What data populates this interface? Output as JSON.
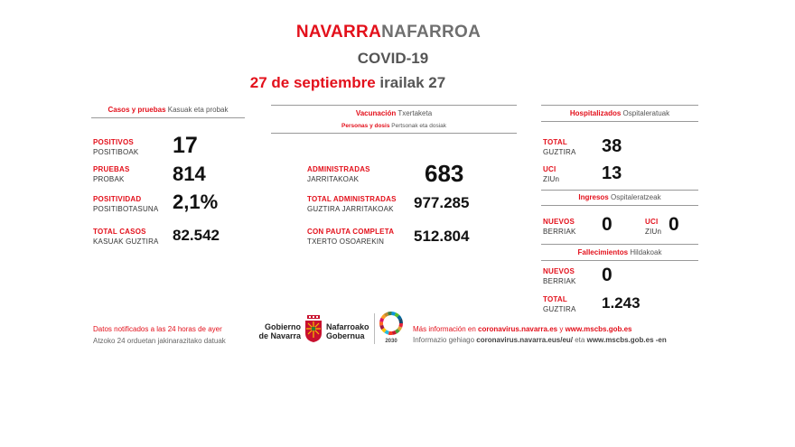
{
  "header": {
    "title_es": "NAVARRA",
    "title_eu": "NAFARROA",
    "subtitle": "COVID-19",
    "date_es": "27 de septiembre",
    "date_eu": "irailak 27"
  },
  "casos": {
    "heading_es": "Casos y pruebas",
    "heading_eu": "Kasuak eta probak",
    "items": [
      {
        "label_es": "POSITIVOS",
        "label_eu": "POSITIBOAK",
        "value": "17"
      },
      {
        "label_es": "PRUEBAS",
        "label_eu": "PROBAK",
        "value": "814"
      },
      {
        "label_es": "POSITIVIDAD",
        "label_eu": "POSITIBOTASUNA",
        "value": "2,1%"
      },
      {
        "label_es": "TOTAL CASOS",
        "label_eu": "KASUAK GUZTIRA",
        "value": "82.542"
      }
    ]
  },
  "vacunacion": {
    "heading_es": "Vacunación",
    "heading_eu": "Txertaketa",
    "subheading_es": "Personas y dosis",
    "subheading_eu": "Pertsonak eta dosiak",
    "items": [
      {
        "label_es": "ADMINISTRADAS",
        "label_eu": "JARRITAKOAK",
        "value": "683"
      },
      {
        "label_es": "TOTAL ADMINISTRADAS",
        "label_eu": "GUZTIRA JARRITAKOAK",
        "value": "977.285"
      },
      {
        "label_es": "CON PAUTA COMPLETA",
        "label_eu": "TXERTO OSOAREKIN",
        "value": "512.804"
      }
    ]
  },
  "hospital": {
    "heading_es": "Hospitalizados",
    "heading_eu": "Ospitaleratuak",
    "total": {
      "label_es": "TOTAL",
      "label_eu": "GUZTIRA",
      "value": "38"
    },
    "uci": {
      "label_es": "UCI",
      "label_eu": "ZIUn",
      "value": "13"
    }
  },
  "ingresos": {
    "heading_es": "Ingresos",
    "heading_eu": "Ospitaleratzeak",
    "nuevos": {
      "label_es": "NUEVOS",
      "label_eu": "BERRIAK",
      "value": "0"
    },
    "uci": {
      "label_es": "UCI",
      "label_eu": "ZIUn",
      "value": "0"
    }
  },
  "fallecimientos": {
    "heading_es": "Fallecimientos",
    "heading_eu": "Hildakoak",
    "nuevos": {
      "label_es": "NUEVOS",
      "label_eu": "BERRIAK",
      "value": "0"
    },
    "total": {
      "label_es": "TOTAL",
      "label_eu": "GUZTIRA",
      "value": "1.243"
    }
  },
  "footer": {
    "note_es": "Datos notificados a las 24 horas de ayer",
    "note_eu": "Atzoko 24 orduetan jakinarazitako datuak",
    "logo_es_1": "Gobierno",
    "logo_es_2": "de Navarra",
    "logo_eu_1": "Nafarroako",
    "logo_eu_2": "Gobernua",
    "sdg_year": "2030",
    "info_es_prefix": "Más información en",
    "info_es_link1": "coronavirus.navarra.es",
    "info_es_mid": "y",
    "info_es_link2": "www.mscbs.gob.es",
    "info_eu_prefix": "Informazio gehiago",
    "info_eu_link1": "coronavirus.navarra.eus/eu/",
    "info_eu_mid": "eta",
    "info_eu_link2": "www.mscbs.gob.es -en"
  }
}
